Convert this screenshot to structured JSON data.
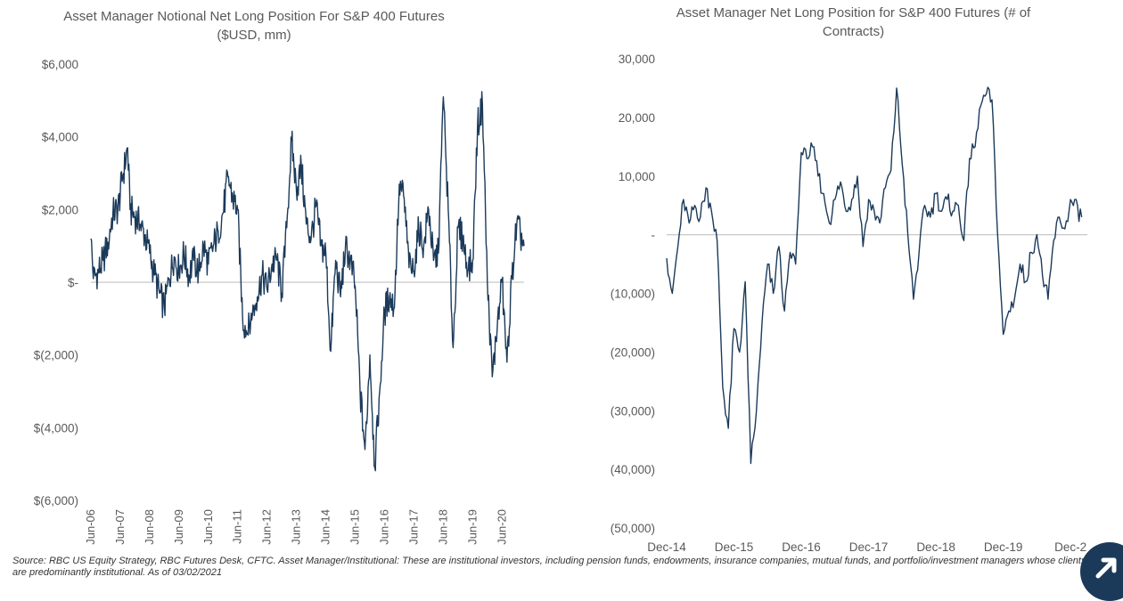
{
  "charts": {
    "left": {
      "title_line1": "Asset Manager Notional Net Long Position For S&P 400 Futures",
      "title_line2": "($USD, mm)"
    },
    "right": {
      "title_line1": "Asset Manager Net Long Position for S&P 400 Futures (# of",
      "title_line2": "Contracts)"
    }
  },
  "source_note": "Source: RBC US Equity Strategy, RBC Futures Desk, CFTC. Asset Manager/Institutional: These are institutional investors, including pension funds, endowments, insurance companies, mutual funds, and portfolio/investment managers whose clients are predominantly institutional. As of 03/02/2021",
  "colors": {
    "line": "#1b3a5a",
    "zero_line": "#c8c8c8",
    "text": "#595959",
    "badge": "#1b3a5a"
  },
  "badge_icon": "arrow-up-right-icon",
  "chart_data": [
    {
      "type": "line",
      "title": "Asset Manager Notional Net Long Position For S&P 400 Futures ($USD, mm)",
      "xlabel": "",
      "ylabel": "",
      "x_tick_labels": [
        "Jun-06",
        "Jun-07",
        "Jun-08",
        "Jun-09",
        "Jun-10",
        "Jun-11",
        "Jun-12",
        "Jun-13",
        "Jun-14",
        "Jun-15",
        "Jun-16",
        "Jun-17",
        "Jun-18",
        "Jun-19",
        "Jun-20"
      ],
      "y_tick_labels": [
        "$6,000",
        "$4,000",
        "$2,000",
        "$-",
        "$(2,000)",
        "$(4,000)",
        "$(6,000)"
      ],
      "y_tick_values": [
        6000,
        4000,
        2000,
        0,
        -2000,
        -4000,
        -6000
      ],
      "ylim": [
        -6000,
        6000
      ],
      "xlim": [
        "2006-06",
        "2021-03"
      ],
      "grid": false,
      "zero_line": true,
      "series": [
        {
          "points": [
            [
              "2006-06",
              1200
            ],
            [
              "2006-07",
              100
            ],
            [
              "2006-09",
              300
            ],
            [
              "2006-11",
              600
            ],
            [
              "2007-01",
              1100
            ],
            [
              "2007-03",
              1900
            ],
            [
              "2007-05",
              2000
            ],
            [
              "2007-07",
              2900
            ],
            [
              "2007-09",
              3700
            ],
            [
              "2007-10",
              2000
            ],
            [
              "2007-12",
              1800
            ],
            [
              "2008-02",
              1600
            ],
            [
              "2008-04",
              1300
            ],
            [
              "2008-06",
              800
            ],
            [
              "2008-08",
              200
            ],
            [
              "2008-10",
              -300
            ],
            [
              "2008-12",
              -700
            ],
            [
              "2009-02",
              100
            ],
            [
              "2009-04",
              700
            ],
            [
              "2009-06",
              300
            ],
            [
              "2009-08",
              800
            ],
            [
              "2009-10",
              200
            ],
            [
              "2009-12",
              600
            ],
            [
              "2010-02",
              300
            ],
            [
              "2010-04",
              1000
            ],
            [
              "2010-06",
              500
            ],
            [
              "2010-08",
              1000
            ],
            [
              "2010-10",
              1400
            ],
            [
              "2010-12",
              1900
            ],
            [
              "2011-02",
              2900
            ],
            [
              "2011-04",
              2300
            ],
            [
              "2011-06",
              2000
            ],
            [
              "2011-08",
              -1000
            ],
            [
              "2011-10",
              -1400
            ],
            [
              "2011-12",
              -900
            ],
            [
              "2012-02",
              -400
            ],
            [
              "2012-04",
              200
            ],
            [
              "2012-06",
              -200
            ],
            [
              "2012-08",
              500
            ],
            [
              "2012-10",
              600
            ],
            [
              "2012-12",
              -300
            ],
            [
              "2013-02",
              1500
            ],
            [
              "2013-04",
              3900
            ],
            [
              "2013-06",
              2500
            ],
            [
              "2013-08",
              3200
            ],
            [
              "2013-10",
              1600
            ],
            [
              "2013-12",
              1200
            ],
            [
              "2014-02",
              2100
            ],
            [
              "2014-04",
              1000
            ],
            [
              "2014-06",
              800
            ],
            [
              "2014-08",
              -1900
            ],
            [
              "2014-10",
              600
            ],
            [
              "2014-12",
              -400
            ],
            [
              "2015-02",
              1000
            ],
            [
              "2015-04",
              600
            ],
            [
              "2015-06",
              -100
            ],
            [
              "2015-08",
              -3000
            ],
            [
              "2015-10",
              -4600
            ],
            [
              "2015-12",
              -2000
            ],
            [
              "2016-02",
              -5100
            ],
            [
              "2016-04",
              -3000
            ],
            [
              "2016-06",
              -800
            ],
            [
              "2016-08",
              -400
            ],
            [
              "2016-10",
              -700
            ],
            [
              "2016-12",
              2700
            ],
            [
              "2017-02",
              2300
            ],
            [
              "2017-04",
              400
            ],
            [
              "2017-06",
              300
            ],
            [
              "2017-08",
              1500
            ],
            [
              "2017-10",
              1000
            ],
            [
              "2017-12",
              2000
            ],
            [
              "2018-02",
              600
            ],
            [
              "2018-04",
              800
            ],
            [
              "2018-06",
              5100
            ],
            [
              "2018-08",
              2000
            ],
            [
              "2018-10",
              -1800
            ],
            [
              "2018-12",
              1500
            ],
            [
              "2019-02",
              1200
            ],
            [
              "2019-04",
              300
            ],
            [
              "2019-06",
              600
            ],
            [
              "2019-08",
              4300
            ],
            [
              "2019-10",
              4900
            ],
            [
              "2019-12",
              0
            ],
            [
              "2020-02",
              -2600
            ],
            [
              "2020-04",
              -1300
            ],
            [
              "2020-06",
              0
            ],
            [
              "2020-08",
              -2200
            ],
            [
              "2020-10",
              100
            ],
            [
              "2020-12",
              1600
            ],
            [
              "2021-03",
              1000
            ]
          ]
        }
      ]
    },
    {
      "type": "line",
      "title": "Asset Manager Net Long Position for S&P 400 Futures (# of Contracts)",
      "xlabel": "",
      "ylabel": "",
      "x_tick_labels": [
        "Dec-14",
        "Dec-15",
        "Dec-16",
        "Dec-17",
        "Dec-18",
        "Dec-19",
        "Dec-2"
      ],
      "y_tick_labels": [
        "30,000",
        "20,000",
        "10,000",
        "-",
        "(10,000)",
        "(20,000)",
        "(30,000)",
        "(40,000)",
        "(50,000)"
      ],
      "y_tick_values": [
        30000,
        20000,
        10000,
        0,
        -10000,
        -20000,
        -30000,
        -40000,
        -50000
      ],
      "ylim": [
        -50000,
        30000
      ],
      "xlim": [
        "2014-12",
        "2021-03"
      ],
      "grid": false,
      "zero_line": true,
      "series": [
        {
          "points": [
            [
              "2014-12",
              -4000
            ],
            [
              "2015-01",
              -10000
            ],
            [
              "2015-02",
              -2000
            ],
            [
              "2015-03",
              6000
            ],
            [
              "2015-04",
              2000
            ],
            [
              "2015-05",
              5000
            ],
            [
              "2015-06",
              3000
            ],
            [
              "2015-07",
              8000
            ],
            [
              "2015-08",
              4000
            ],
            [
              "2015-09",
              -1000
            ],
            [
              "2015-10",
              -26000
            ],
            [
              "2015-11",
              -33000
            ],
            [
              "2015-12",
              -16000
            ],
            [
              "2016-01",
              -20000
            ],
            [
              "2016-02",
              -8000
            ],
            [
              "2016-03",
              -39000
            ],
            [
              "2016-04",
              -30000
            ],
            [
              "2016-05",
              -15000
            ],
            [
              "2016-06",
              -5000
            ],
            [
              "2016-07",
              -10000
            ],
            [
              "2016-08",
              -2000
            ],
            [
              "2016-09",
              -13000
            ],
            [
              "2016-10",
              -3000
            ],
            [
              "2016-11",
              -5000
            ],
            [
              "2016-12",
              14000
            ],
            [
              "2017-01",
              13000
            ],
            [
              "2017-02",
              15000
            ],
            [
              "2017-03",
              10000
            ],
            [
              "2017-04",
              7000
            ],
            [
              "2017-05",
              2000
            ],
            [
              "2017-06",
              6000
            ],
            [
              "2017-07",
              9000
            ],
            [
              "2017-08",
              4000
            ],
            [
              "2017-09",
              6000
            ],
            [
              "2017-10",
              10000
            ],
            [
              "2017-11",
              -2000
            ],
            [
              "2017-12",
              6000
            ],
            [
              "2018-01",
              4000
            ],
            [
              "2018-02",
              2000
            ],
            [
              "2018-03",
              8000
            ],
            [
              "2018-04",
              11000
            ],
            [
              "2018-05",
              25000
            ],
            [
              "2018-06",
              12000
            ],
            [
              "2018-07",
              0
            ],
            [
              "2018-08",
              -11000
            ],
            [
              "2018-09",
              -3000
            ],
            [
              "2018-10",
              5000
            ],
            [
              "2018-11",
              3000
            ],
            [
              "2018-12",
              7000
            ],
            [
              "2019-01",
              4000
            ],
            [
              "2019-02",
              6000
            ],
            [
              "2019-03",
              4000
            ],
            [
              "2019-04",
              5000
            ],
            [
              "2019-05",
              -1000
            ],
            [
              "2019-06",
              13000
            ],
            [
              "2019-07",
              15000
            ],
            [
              "2019-08",
              22000
            ],
            [
              "2019-09",
              24000
            ],
            [
              "2019-10",
              23000
            ],
            [
              "2019-11",
              0
            ],
            [
              "2019-12",
              -17000
            ],
            [
              "2020-01",
              -13000
            ],
            [
              "2020-02",
              -11000
            ],
            [
              "2020-03",
              -5000
            ],
            [
              "2020-04",
              -8000
            ],
            [
              "2020-05",
              -3000
            ],
            [
              "2020-06",
              0
            ],
            [
              "2020-07",
              -7000
            ],
            [
              "2020-08",
              -11000
            ],
            [
              "2020-09",
              -1000
            ],
            [
              "2020-10",
              3000
            ],
            [
              "2020-11",
              1000
            ],
            [
              "2020-12",
              6000
            ],
            [
              "2021-02",
              3000
            ]
          ]
        }
      ]
    }
  ]
}
